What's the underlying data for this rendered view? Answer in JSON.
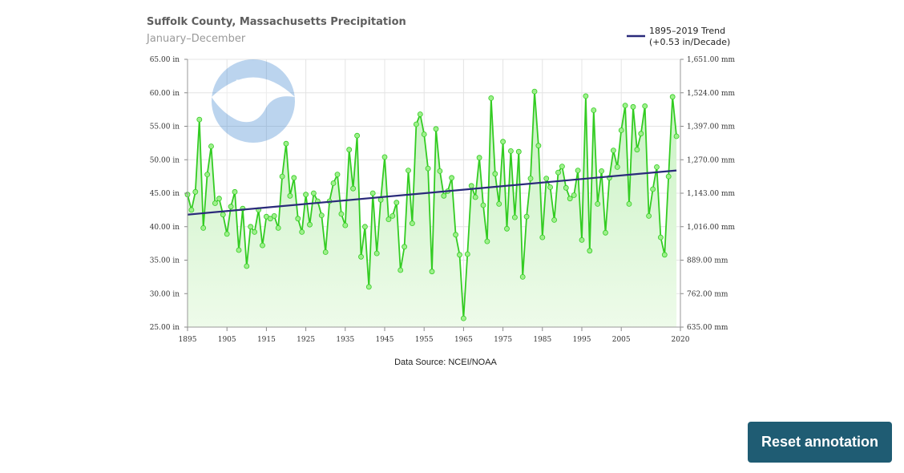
{
  "chart_data": {
    "type": "line",
    "title": "Suffolk County, Massachusetts Precipitation",
    "subtitle": "January–December",
    "source": "Data Source: NCEI/NOAA",
    "logo_text": "NOAA",
    "legend": {
      "label_line1": "1895–2019 Trend",
      "label_line2": "(+0.53 in/Decade)",
      "position": "top-right"
    },
    "xlim": [
      1895,
      2020
    ],
    "ylim": [
      25,
      65
    ],
    "x_ticks": [
      1895,
      1905,
      1915,
      1925,
      1935,
      1945,
      1955,
      1965,
      1975,
      1985,
      1995,
      2005,
      2020
    ],
    "y_ticks_left": [
      "25.00 in",
      "30.00 in",
      "35.00 in",
      "40.00 in",
      "45.00 in",
      "50.00 in",
      "55.00 in",
      "60.00 in",
      "65.00 in"
    ],
    "y_ticks_right": [
      "635.00 mm",
      "762.00 mm",
      "889.00 mm",
      "1,016.00 mm",
      "1,143.00 mm",
      "1,270.00 mm",
      "1,397.00 mm",
      "1,524.00 mm",
      "1,651.00 mm"
    ],
    "colors": {
      "series": "#33cc22",
      "fill_top": "#c8f2c2",
      "fill_bottom": "#eefbea",
      "trend": "#2a2a7a",
      "grid": "#e4e4e4",
      "marker": "#9ef08c"
    },
    "trend": {
      "start": [
        1895,
        41.8
      ],
      "end": [
        2019,
        48.4
      ]
    },
    "series": [
      {
        "start_year": 1895,
        "values": [
          44.8,
          42.5,
          45.2,
          56.0,
          39.8,
          47.8,
          52.0,
          43.5,
          44.2,
          41.8,
          38.9,
          43.0,
          45.2,
          36.5,
          42.7,
          34.1,
          40.0,
          39.2,
          42.5,
          37.2,
          41.5,
          41.2,
          41.6,
          39.8,
          47.5,
          52.4,
          44.6,
          47.3,
          41.2,
          39.2,
          44.8,
          40.3,
          45.0,
          43.8,
          41.7,
          36.2,
          43.8,
          46.5,
          47.8,
          41.9,
          40.2,
          51.5,
          45.7,
          53.6,
          35.5,
          40.0,
          31.0,
          45.0,
          36.0,
          44.0,
          50.4,
          41.1,
          41.6,
          43.6,
          33.5,
          37.0,
          48.4,
          40.5,
          55.3,
          56.8,
          53.8,
          48.7,
          33.3,
          54.6,
          48.3,
          44.6,
          45.3,
          47.3,
          38.8,
          35.8,
          26.3,
          35.9,
          46.1,
          44.4,
          50.3,
          43.2,
          37.8,
          59.2,
          47.9,
          43.4,
          52.7,
          39.7,
          51.3,
          41.4,
          51.2,
          32.5,
          41.5,
          47.2,
          60.2,
          52.1,
          38.4,
          47.2,
          45.9,
          41.0,
          48.1,
          49.0,
          45.8,
          44.2,
          44.7,
          48.4,
          38.0,
          59.5,
          36.4,
          57.4,
          43.4,
          48.3,
          39.1,
          47.3,
          51.4,
          48.9,
          54.4,
          58.1,
          43.4,
          57.9,
          51.5,
          53.9,
          58.0,
          41.6,
          45.6,
          48.9,
          38.4,
          35.8,
          47.5,
          59.4,
          53.5
        ]
      }
    ]
  },
  "reset_button": {
    "label": "Reset annotation"
  }
}
